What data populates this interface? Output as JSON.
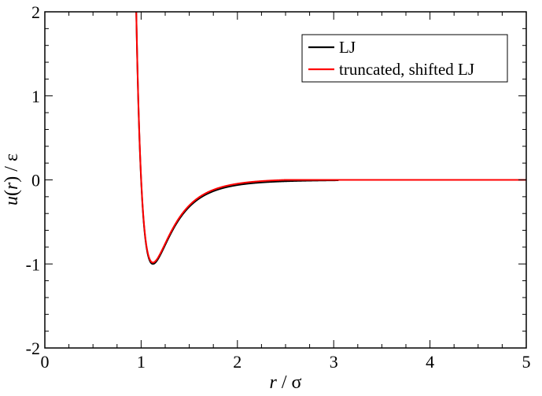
{
  "chart_data": {
    "type": "line",
    "title": "",
    "xlabel": {
      "italic": "r",
      "rest": " / σ"
    },
    "ylabel": {
      "italic_u": "u",
      "paren_open": "(",
      "italic_r": "r",
      "paren_close": ")",
      "rest": " / ε"
    },
    "xlim": [
      0,
      5
    ],
    "ylim": [
      -2,
      2
    ],
    "x_ticks": [
      0,
      1,
      2,
      3,
      4,
      5
    ],
    "y_ticks": [
      -2,
      -1,
      0,
      1,
      2
    ],
    "x_tick_labels": [
      "0",
      "1",
      "2",
      "3",
      "4",
      "5"
    ],
    "y_tick_labels": [
      "-2",
      "-1",
      "0",
      "1",
      "2"
    ],
    "x_minor_step": 0.25,
    "y_minor_step": 0.2,
    "grid": false,
    "legend": {
      "position": "top-right"
    },
    "series": [
      {
        "name": "LJ",
        "color": "#000000",
        "function": "lennard-jones",
        "x_range": [
          0.93,
          3.05
        ]
      },
      {
        "name": "truncated, shifted LJ",
        "color": "#ff0000",
        "function": "lennard-jones-truncated-shifted",
        "cutoff": 2.5,
        "x_range": [
          0.93,
          5.0
        ]
      }
    ]
  }
}
